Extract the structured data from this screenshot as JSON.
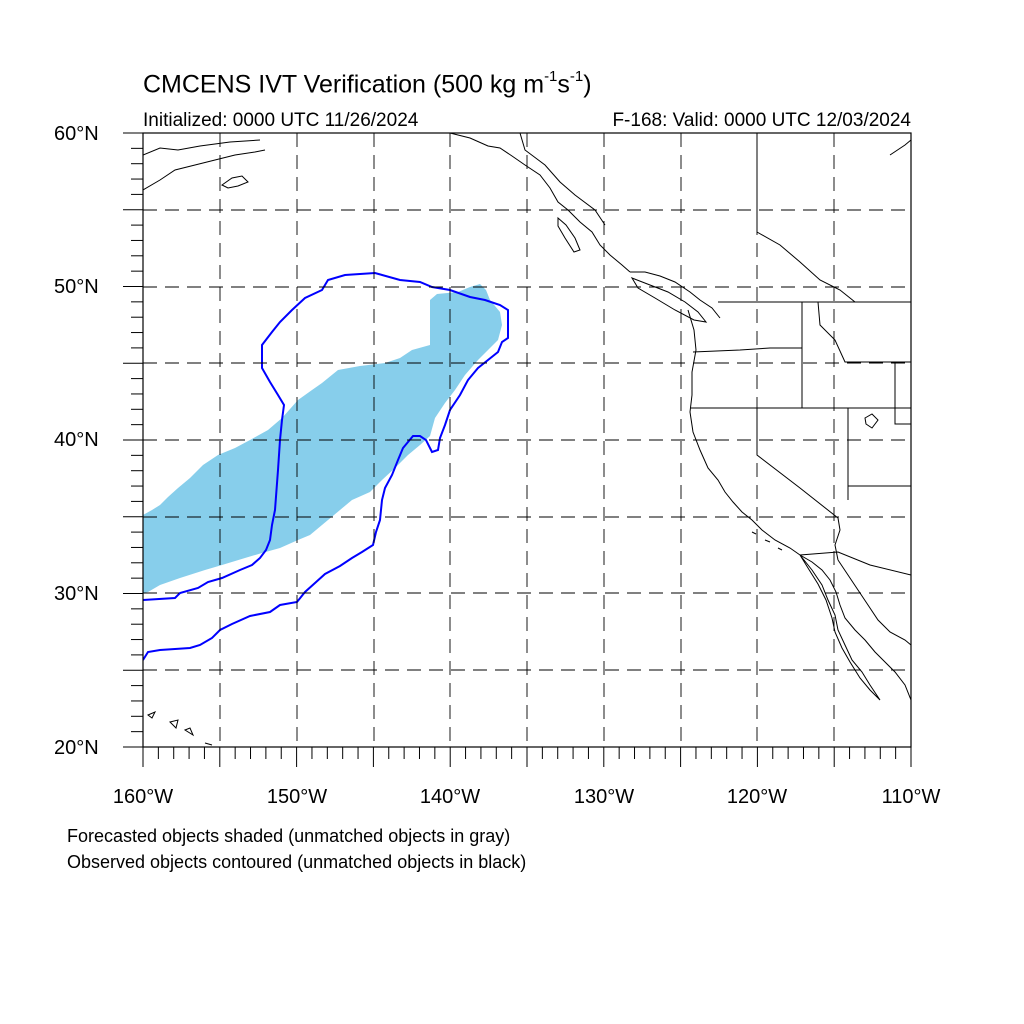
{
  "title": {
    "main": "CMCENS IVT Verification (500 kg m",
    "exp1": "-1",
    "mid": "s",
    "exp2": "-1",
    "close": ")"
  },
  "subtitle": {
    "initialized": "Initialized: 0000 UTC 11/26/2024",
    "valid": "F-168: Valid: 0000 UTC 12/03/2024"
  },
  "axes": {
    "lat_labels": [
      "60°N",
      "50°N",
      "40°N",
      "30°N",
      "20°N"
    ],
    "lon_labels": [
      "160°W",
      "150°W",
      "140°W",
      "130°W",
      "120°W",
      "110°W"
    ],
    "lon_range": [
      -160,
      -110
    ],
    "lat_range": [
      20,
      60
    ]
  },
  "notes": {
    "forecast": "Forecasted objects shaded (unmatched objects in gray)",
    "observed": "Observed objects contoured (unmatched objects in black)"
  },
  "colors": {
    "forecast_fill": "#87ceeb",
    "observed_contour": "#0000ff",
    "coastline": "#000000",
    "grid": "#000000"
  }
}
